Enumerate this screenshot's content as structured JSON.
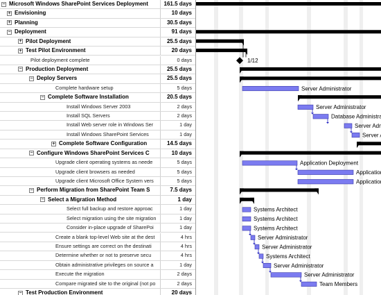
{
  "rows": [
    {
      "name": "Microsoft Windows SharePoint Services Deployment",
      "duration": "161.5 days",
      "level": 0,
      "type": "summary",
      "toggle": "minus"
    },
    {
      "name": "Envisioning",
      "duration": "10 days",
      "level": 1,
      "type": "summary",
      "toggle": "plus"
    },
    {
      "name": "Planning",
      "duration": "30.5 days",
      "level": 1,
      "type": "summary",
      "toggle": "plus"
    },
    {
      "name": "Deployment",
      "duration": "91 days",
      "level": 1,
      "type": "summary",
      "toggle": "minus"
    },
    {
      "name": "Pilot Deployment",
      "duration": "25.5 days",
      "level": 2,
      "type": "summary",
      "toggle": "plus"
    },
    {
      "name": "Test Pilot Environment",
      "duration": "20 days",
      "level": 2,
      "type": "summary",
      "toggle": "plus"
    },
    {
      "name": "Pilot deployment complete",
      "duration": "0 days",
      "level": 2,
      "type": "leaf",
      "toggle": ""
    },
    {
      "name": "Production Deployment",
      "duration": "25.5 days",
      "level": 2,
      "type": "summary",
      "toggle": "minus"
    },
    {
      "name": "Deploy Servers",
      "duration": "25.5 days",
      "level": 3,
      "type": "summary",
      "toggle": "minus"
    },
    {
      "name": "Complete hardware setup",
      "duration": "5 days",
      "level": 4,
      "type": "leaf",
      "toggle": ""
    },
    {
      "name": "Complete Software Installation",
      "duration": "20.5 days",
      "level": 4,
      "type": "summary",
      "toggle": "minus"
    },
    {
      "name": "Install Windows Server 2003",
      "duration": "2 days",
      "level": 5,
      "type": "leaf",
      "toggle": ""
    },
    {
      "name": "Install SQL Servers",
      "duration": "2 days",
      "level": 5,
      "type": "leaf",
      "toggle": ""
    },
    {
      "name": "Install Web server role in Windows Ser",
      "duration": "1 day",
      "level": 5,
      "type": "leaf",
      "toggle": ""
    },
    {
      "name": "Install Windows SharePoint Services",
      "duration": "1 day",
      "level": 5,
      "type": "leaf",
      "toggle": ""
    },
    {
      "name": "Complete Software Configuration",
      "duration": "14.5 days",
      "level": 5,
      "type": "summary",
      "toggle": "plus"
    },
    {
      "name": "Configure Windows SharePoint Services C",
      "duration": "10 days",
      "level": 3,
      "type": "summary",
      "toggle": "minus"
    },
    {
      "name": "Upgrade client operating systems as neede",
      "duration": "5 days",
      "level": 4,
      "type": "leaf",
      "toggle": ""
    },
    {
      "name": "Upgrade client browsers as needed",
      "duration": "5 days",
      "level": 4,
      "type": "leaf",
      "toggle": ""
    },
    {
      "name": "Upgrade client Microsoft Office System vers",
      "duration": "5 days",
      "level": 4,
      "type": "leaf",
      "toggle": ""
    },
    {
      "name": "Perform Migration from SharePoint Team S",
      "duration": "7.5 days",
      "level": 3,
      "type": "summary",
      "toggle": "minus"
    },
    {
      "name": "Select a Migration Method",
      "duration": "1 day",
      "level": 4,
      "type": "summary",
      "toggle": "minus"
    },
    {
      "name": "Select full backup and restore approac",
      "duration": "1 day",
      "level": 5,
      "type": "leaf",
      "toggle": ""
    },
    {
      "name": "Select migration using the site migration",
      "duration": "1 day",
      "level": 5,
      "type": "leaf",
      "toggle": ""
    },
    {
      "name": "Consider in-place upgrade of SharePoi",
      "duration": "1 day",
      "level": 5,
      "type": "leaf",
      "toggle": ""
    },
    {
      "name": "Create a blank top-level Web site at the dest",
      "duration": "4 hrs",
      "level": 4,
      "type": "leaf",
      "toggle": ""
    },
    {
      "name": "Ensure settings are correct on the destinati",
      "duration": "4 hrs",
      "level": 4,
      "type": "leaf",
      "toggle": ""
    },
    {
      "name": "Determine whether or not to preserve secu",
      "duration": "4 hrs",
      "level": 4,
      "type": "leaf",
      "toggle": ""
    },
    {
      "name": "Obtain administrative privileges on source a",
      "duration": "1 day",
      "level": 4,
      "type": "leaf",
      "toggle": ""
    },
    {
      "name": "Execute the migration",
      "duration": "2 days",
      "level": 4,
      "type": "leaf",
      "toggle": ""
    },
    {
      "name": "Compare migrated site to the original (not po",
      "duration": "2 days",
      "level": 4,
      "type": "leaf",
      "toggle": ""
    },
    {
      "name": "Test Production Environment",
      "duration": "20 days",
      "level": 2,
      "type": "summary",
      "toggle": "minus"
    }
  ],
  "gantt": {
    "milestone_label": "1/12",
    "bar_color": "#7b7bf0",
    "summary_color": "#000000",
    "resource_labels": [
      {
        "row": 9,
        "text": "Server Administrator"
      },
      {
        "row": 11,
        "text": "Server Administrator"
      },
      {
        "row": 12,
        "text": "Database Administrator"
      },
      {
        "row": 13,
        "text": "Server Administrator"
      },
      {
        "row": 14,
        "text": "Server Administrator"
      },
      {
        "row": 17,
        "text": "Application Deployment"
      },
      {
        "row": 18,
        "text": "Application Deployment"
      },
      {
        "row": 19,
        "text": "Application Deployment"
      },
      {
        "row": 22,
        "text": "Systems Architect"
      },
      {
        "row": 23,
        "text": "Systems Architect"
      },
      {
        "row": 24,
        "text": "Systems Architect"
      },
      {
        "row": 25,
        "text": "Server Administrator"
      },
      {
        "row": 26,
        "text": "Server Administrator"
      },
      {
        "row": 27,
        "text": "Systems Architect"
      },
      {
        "row": 28,
        "text": "Server Administrator"
      },
      {
        "row": 29,
        "text": "Server Administrator"
      },
      {
        "row": 30,
        "text": "Team Members"
      }
    ]
  }
}
